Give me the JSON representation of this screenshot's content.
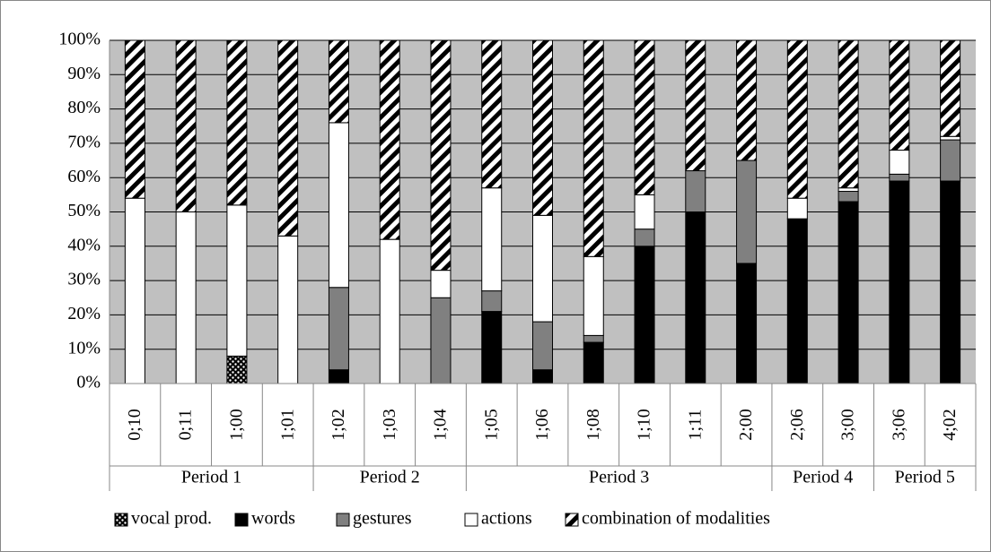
{
  "chart_data": {
    "type": "stacked_bar_percent",
    "categories": [
      "0;10",
      "0;11",
      "1;00",
      "1;01",
      "1;02",
      "1;03",
      "1;04",
      "1;05",
      "1;06",
      "1;08",
      "1;10",
      "1;11",
      "2;00",
      "2;06",
      "3;00",
      "3;06",
      "4;02"
    ],
    "groups": [
      {
        "name": "Period 1",
        "count": 4
      },
      {
        "name": "Period 2",
        "count": 3
      },
      {
        "name": "Period 3",
        "count": 6
      },
      {
        "name": "Period 4",
        "count": 2
      },
      {
        "name": "Period 5",
        "count": 2
      }
    ],
    "series": [
      {
        "name": "vocal prod.",
        "color": "#000000",
        "pattern": "dots",
        "values": [
          0,
          0,
          8,
          0,
          0,
          0,
          0,
          0,
          0,
          0,
          0,
          0,
          0,
          0,
          0,
          0,
          0
        ]
      },
      {
        "name": "words",
        "color": "#000000",
        "values": [
          0,
          0,
          0,
          0,
          4,
          0,
          0,
          21,
          4,
          12,
          40,
          50,
          35,
          48,
          53,
          59,
          59
        ]
      },
      {
        "name": "gestures",
        "color": "#808080",
        "values": [
          0,
          0,
          0,
          0,
          24,
          0,
          25,
          6,
          14,
          2,
          5,
          12,
          30,
          0,
          3,
          2,
          12
        ]
      },
      {
        "name": "actions",
        "color": "#ffffff",
        "values": [
          54,
          50,
          44,
          43,
          48,
          42,
          8,
          30,
          31,
          23,
          10,
          0,
          0,
          6,
          1,
          7,
          1
        ]
      },
      {
        "name": "combination of modalities",
        "color": "#000000",
        "pattern": "stripes",
        "values": [
          46,
          50,
          48,
          57,
          24,
          58,
          67,
          43,
          51,
          63,
          45,
          38,
          35,
          46,
          43,
          32,
          28
        ]
      }
    ],
    "ylim": [
      0,
      100
    ],
    "yticks": [
      {
        "value": 0,
        "label": "0%"
      },
      {
        "value": 10,
        "label": "10%"
      },
      {
        "value": 20,
        "label": "20%"
      },
      {
        "value": 30,
        "label": "30%"
      },
      {
        "value": 40,
        "label": "40%"
      },
      {
        "value": 50,
        "label": "50%"
      },
      {
        "value": 60,
        "label": "60%"
      },
      {
        "value": 70,
        "label": "70%"
      },
      {
        "value": 80,
        "label": "80%"
      },
      {
        "value": 90,
        "label": "90%"
      },
      {
        "value": 100,
        "label": "100%"
      }
    ],
    "grid": true,
    "plot_background": "#c0c0c0",
    "legend": "bottom"
  }
}
